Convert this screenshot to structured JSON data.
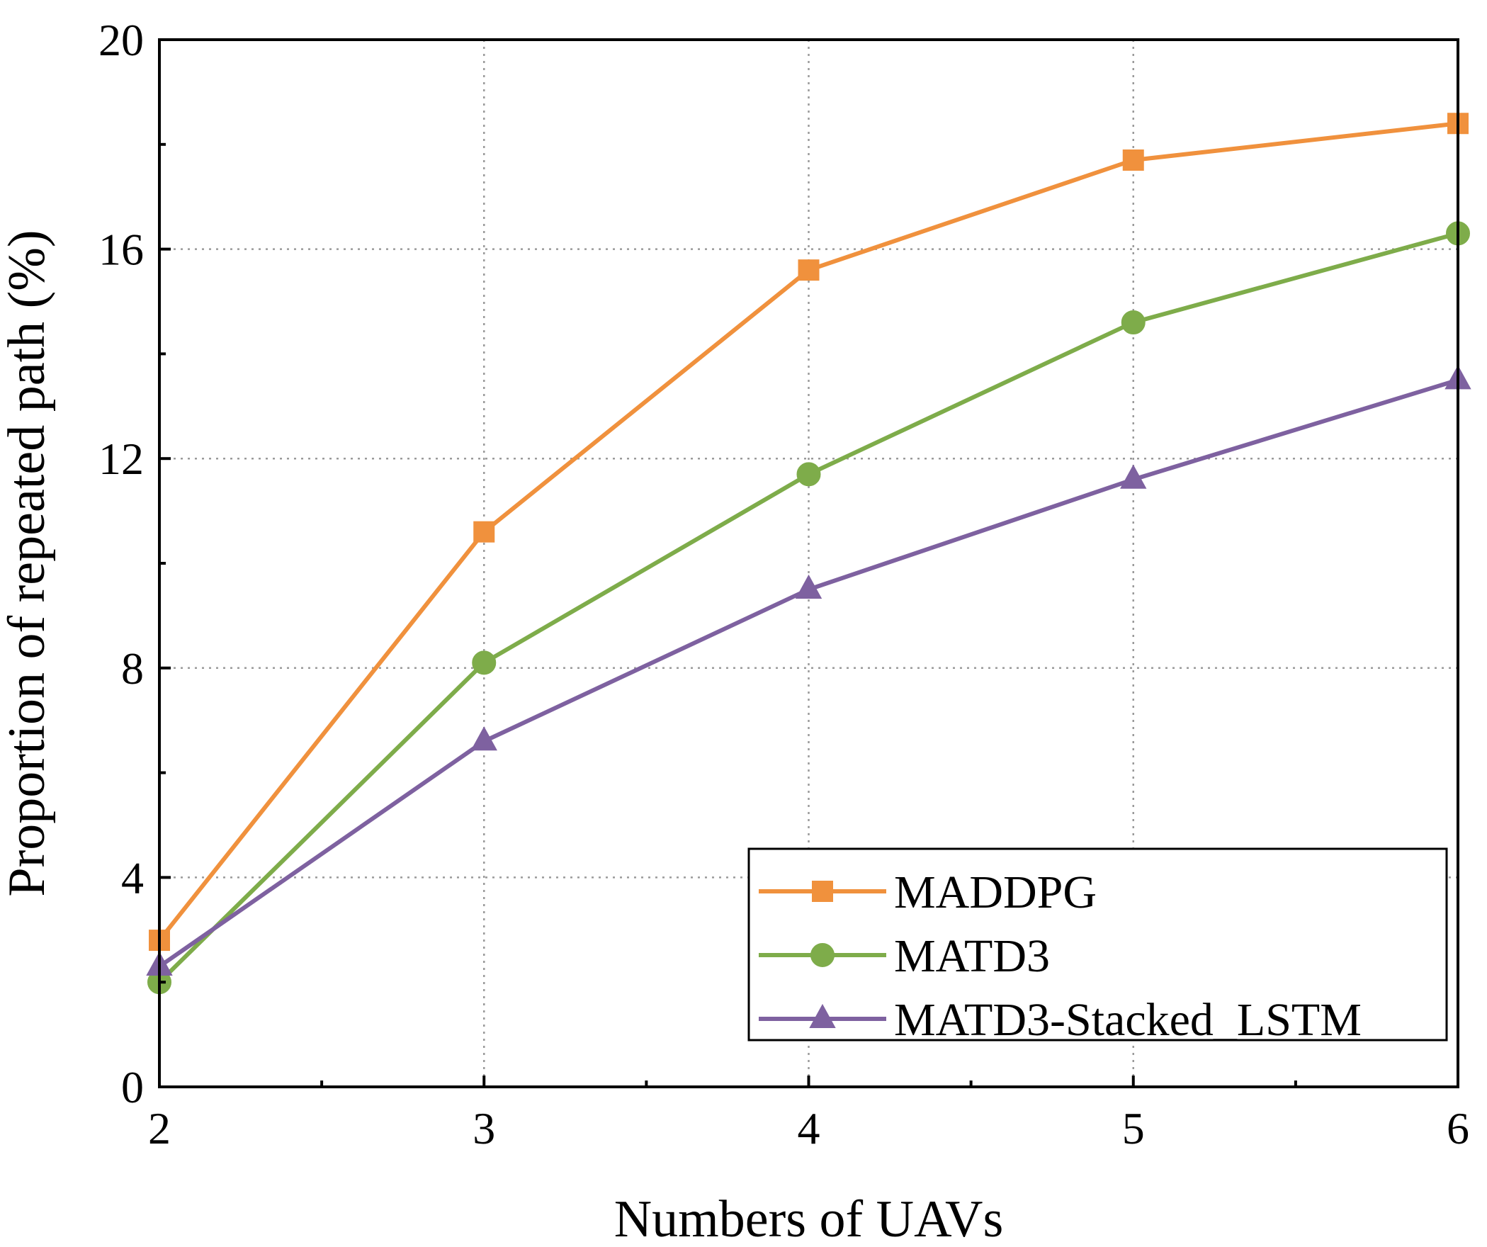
{
  "chart_data": {
    "type": "line",
    "title": "",
    "xlabel": "Numbers of UAVs",
    "ylabel": "Proportion of repeated path (%)",
    "x": [
      2,
      3,
      4,
      5,
      6
    ],
    "xticks": [
      "2",
      "3",
      "4",
      "5",
      "6"
    ],
    "xlim": [
      2,
      6
    ],
    "yticks": [
      "0",
      "4",
      "8",
      "12",
      "16",
      "20"
    ],
    "ylim": [
      0,
      20
    ],
    "grid": true,
    "legend_position": "bottom-right",
    "series": [
      {
        "name": "MADDPG",
        "marker": "square",
        "color": "#F0913D",
        "values": [
          2.8,
          10.6,
          15.6,
          17.7,
          18.4
        ]
      },
      {
        "name": "MATD3",
        "marker": "circle",
        "color": "#7EAC4A",
        "values": [
          2.0,
          8.1,
          11.7,
          14.6,
          16.3
        ]
      },
      {
        "name": "MATD3-Stacked_LSTM",
        "marker": "triangle",
        "color": "#7E61A0",
        "values": [
          2.3,
          6.6,
          9.5,
          11.6,
          13.5
        ]
      }
    ]
  }
}
